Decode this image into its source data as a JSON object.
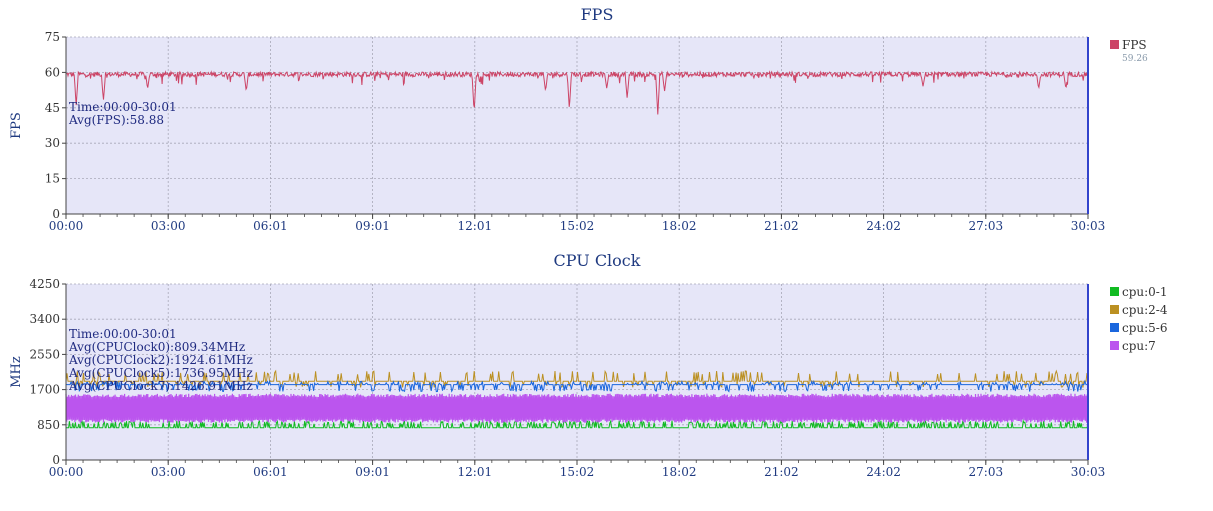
{
  "chart_data": [
    {
      "type": "line",
      "title": "FPS",
      "ylabel": "FPS",
      "xlabel": "",
      "x_ticks": [
        "00:00",
        "03:00",
        "06:01",
        "09:01",
        "12:01",
        "15:02",
        "18:02",
        "21:02",
        "24:02",
        "27:03",
        "30:03"
      ],
      "x_range_minutes": [
        0,
        30.05
      ],
      "ylim": [
        0,
        75
      ],
      "y_ticks": [
        0,
        15,
        30,
        45,
        60,
        75
      ],
      "grid": true,
      "legend_position": "right",
      "annotation_lines": [
        "Time:00:00-30:01",
        "Avg(FPS):58.88"
      ],
      "series": [
        {
          "name": "FPS",
          "legend_value": "59.26",
          "color": "#cc4466",
          "baseline": 59.2,
          "noise": 1.0,
          "dips": [
            [
              0.3,
              46
            ],
            [
              1.1,
              48
            ],
            [
              2.4,
              53
            ],
            [
              5.3,
              52
            ],
            [
              12.0,
              43
            ],
            [
              14.1,
              52
            ],
            [
              14.8,
              44
            ],
            [
              15.9,
              53
            ],
            [
              16.5,
              49
            ],
            [
              17.4,
              42
            ],
            [
              17.6,
              52
            ],
            [
              25.2,
              54
            ],
            [
              28.6,
              53
            ],
            [
              29.4,
              53
            ]
          ],
          "point_count": 1500
        }
      ]
    },
    {
      "type": "line",
      "title": "CPU Clock",
      "ylabel": "MHz",
      "xlabel": "",
      "x_ticks": [
        "00:00",
        "03:00",
        "06:01",
        "09:01",
        "12:01",
        "15:02",
        "18:02",
        "21:02",
        "24:02",
        "27:03",
        "30:03"
      ],
      "x_range_minutes": [
        0,
        30.05
      ],
      "ylim": [
        0,
        4250
      ],
      "y_ticks": [
        0,
        850,
        1700,
        2550,
        3400,
        4250
      ],
      "grid": true,
      "legend_position": "right",
      "annotation_lines": [
        "Time:00:00-30:01",
        "Avg(CPUClock0):809.34MHz",
        "Avg(CPUClock2):1924.61MHz",
        "Avg(CPUClock5):1736.95MHz",
        "Avg(CPUClock7):1426.91MHz"
      ],
      "series": [
        {
          "name": "cpu:0-1",
          "color": "#11bb22",
          "baseline": 780,
          "spike_top": 950,
          "spike_rate": 0.25,
          "point_count": 1200
        },
        {
          "name": "cpu:2-4",
          "color": "#bb9022",
          "baseline": 1900,
          "spike_low": 1750,
          "spike_top": 2150,
          "spike_rate": 0.18,
          "point_count": 1000
        },
        {
          "name": "cpu:5-6",
          "color": "#1a66dd",
          "baseline": 1820,
          "spike_low": 1650,
          "spike_top": 1900,
          "spike_rate": 0.3,
          "point_count": 1000
        },
        {
          "name": "cpu:7",
          "color": "#bb55ee",
          "low": 900,
          "high": 1600,
          "point_count": 1500
        }
      ]
    }
  ]
}
